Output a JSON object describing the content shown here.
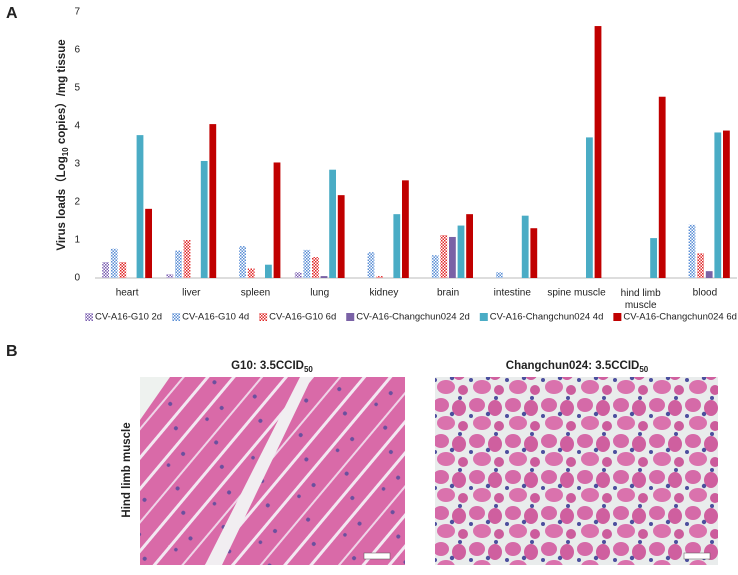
{
  "chart_data": {
    "type": "bar",
    "y_label": {
      "before": "Virus  loads（Log",
      "sub": "10",
      "after": " copies）/mg tissue"
    },
    "categories": [
      "heart",
      "liver",
      "spleen",
      "lung",
      "kidney",
      "brain",
      "intestine",
      "spine muscle",
      "hind limb muscle",
      "blood"
    ],
    "series": [
      {
        "name": "CV-A16-G10 2d",
        "color": "#7b5fb0",
        "pattern": true,
        "values": [
          0.42,
          0.1,
          0,
          0.15,
          0,
          0,
          0,
          0,
          0,
          0
        ]
      },
      {
        "name": "CV-A16-G10 4d",
        "color": "#5b8fd6",
        "pattern": true,
        "values": [
          0.77,
          0.72,
          0.84,
          0.74,
          0.68,
          0.6,
          0.15,
          0,
          0,
          1.4
        ]
      },
      {
        "name": "CV-A16-G10 6d",
        "color": "#e02828",
        "pattern": true,
        "values": [
          0.42,
          1.0,
          0.25,
          0.55,
          0.05,
          1.13,
          0,
          0,
          0,
          0.65
        ]
      },
      {
        "name": "CV-A16-Changchun024 2d",
        "color": "#7a62a6",
        "pattern": false,
        "values": [
          0,
          0,
          0,
          0.05,
          0,
          1.08,
          0,
          0,
          0,
          0.18
        ]
      },
      {
        "name": "CV-A16-Changchun024 4d",
        "color": "#4aacc5",
        "pattern": false,
        "values": [
          3.76,
          3.08,
          0.35,
          2.85,
          1.68,
          1.38,
          1.64,
          3.7,
          1.05,
          3.83
        ]
      },
      {
        "name": "CV-A16-Changchun024 6d",
        "color": "#c00000",
        "pattern": false,
        "values": [
          1.82,
          4.05,
          3.04,
          2.18,
          2.57,
          1.68,
          1.31,
          6.63,
          4.77,
          3.88
        ]
      }
    ],
    "ylim": [
      0,
      7
    ],
    "yticks": [
      0,
      1,
      2,
      3,
      4,
      5,
      6,
      7
    ],
    "grid": false
  },
  "panels": {
    "a": "A",
    "b": "B"
  },
  "histology": {
    "row_label": "Hind limb muscle",
    "images": [
      {
        "title": "G10: 3.5CCID",
        "sub": "50"
      },
      {
        "title": "Changchun024: 3.5CCID",
        "sub": "50"
      }
    ]
  }
}
